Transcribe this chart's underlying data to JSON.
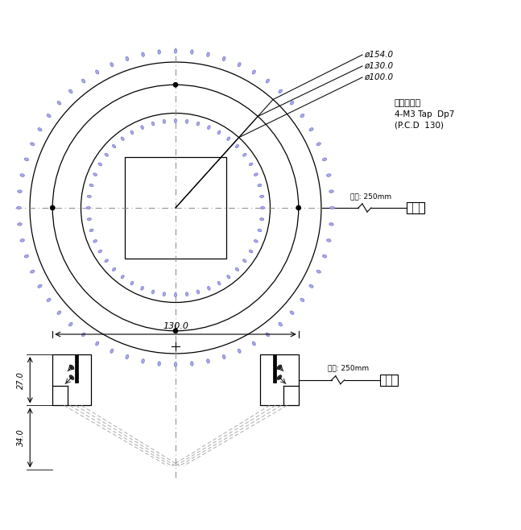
{
  "bg_color": "#ffffff",
  "line_color": "#000000",
  "blue_color": "#7777cc",
  "blue_fill": "#aaaaee",
  "dash_color": "#888888",
  "label_154": "ø154.0",
  "label_130": "ø130.0",
  "label_100": "ø100.0",
  "label_mount": "조명취부홈",
  "label_tap": "4-M3 Tap  Dp7",
  "label_pcd": "(P.C.D  130)",
  "label_cable_top": "길이: 250mm",
  "label_cable_bot": "길이: 250mm",
  "label_130_dim": "130.0",
  "label_27": "27.0",
  "label_34": "34.0"
}
